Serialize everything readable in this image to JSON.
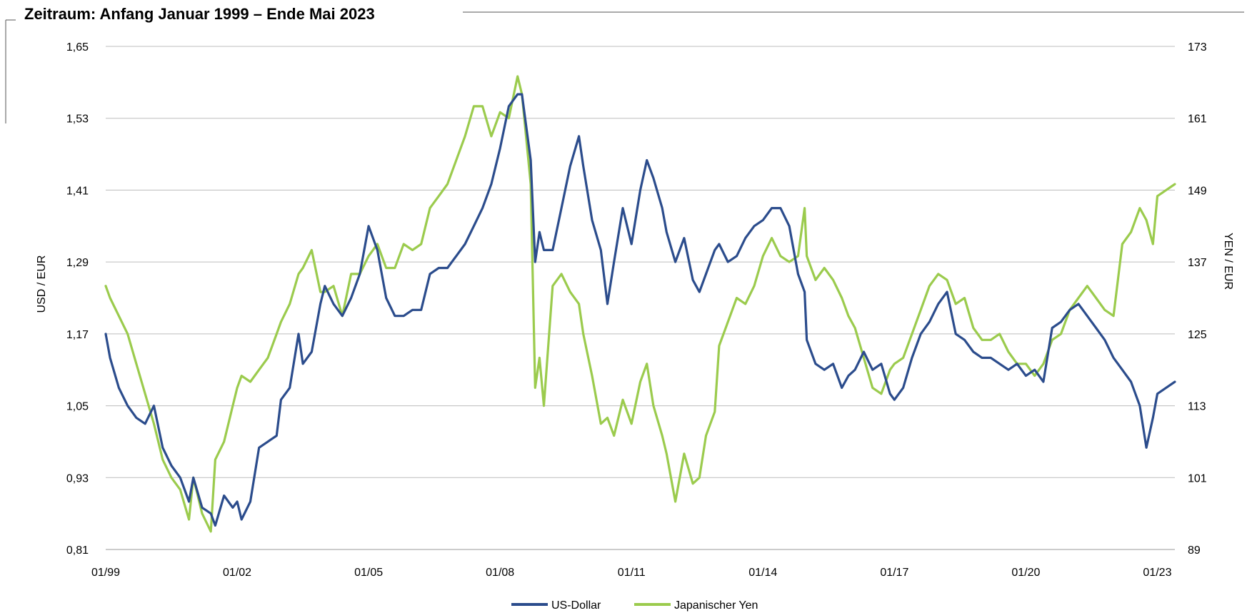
{
  "title": "Zeitraum: Anfang Januar 1999 – Ende Mai 2023",
  "chart_data": {
    "type": "line",
    "x_ticks": [
      "01/99",
      "01/02",
      "01/05",
      "01/08",
      "01/11",
      "01/14",
      "01/17",
      "01/20",
      "01/23"
    ],
    "x_tick_years": [
      1999,
      2002,
      2005,
      2008,
      2011,
      2014,
      2017,
      2020,
      2023
    ],
    "xlim": [
      1999.0,
      2023.4
    ],
    "left_axis": {
      "label": "USD / EUR",
      "ticks": [
        "1,65",
        "1,53",
        "1,41",
        "1,29",
        "1,17",
        "1,05",
        "0,93",
        "0,81"
      ],
      "ylim": [
        0.81,
        1.65
      ]
    },
    "right_axis": {
      "label": "YEN / EUR",
      "ticks": [
        "173",
        "161",
        "149",
        "137",
        "125",
        "113",
        "101",
        "89"
      ],
      "ylim": [
        89,
        173
      ]
    },
    "gridlines": true,
    "legend_position": "bottom-center",
    "series": [
      {
        "name": "US-Dollar",
        "axis": "left",
        "color": "#2B4C8C",
        "x": [
          1999.0,
          1999.1,
          1999.3,
          1999.5,
          1999.7,
          1999.9,
          2000.1,
          2000.3,
          2000.5,
          2000.7,
          2000.9,
          2001.0,
          2001.2,
          2001.4,
          2001.5,
          2001.7,
          2001.9,
          2002.0,
          2002.1,
          2002.3,
          2002.5,
          2002.7,
          2002.9,
          2003.0,
          2003.2,
          2003.4,
          2003.5,
          2003.7,
          2003.9,
          2004.0,
          2004.2,
          2004.4,
          2004.6,
          2004.8,
          2005.0,
          2005.2,
          2005.4,
          2005.6,
          2005.8,
          2006.0,
          2006.2,
          2006.4,
          2006.6,
          2006.8,
          2007.0,
          2007.2,
          2007.4,
          2007.6,
          2007.8,
          2008.0,
          2008.2,
          2008.4,
          2008.5,
          2008.7,
          2008.8,
          2008.9,
          2009.0,
          2009.2,
          2009.4,
          2009.6,
          2009.8,
          2009.9,
          2010.1,
          2010.3,
          2010.45,
          2010.6,
          2010.8,
          2011.0,
          2011.2,
          2011.35,
          2011.5,
          2011.7,
          2011.8,
          2012.0,
          2012.2,
          2012.4,
          2012.55,
          2012.7,
          2012.9,
          2013.0,
          2013.2,
          2013.4,
          2013.6,
          2013.8,
          2014.0,
          2014.2,
          2014.4,
          2014.6,
          2014.8,
          2014.95,
          2015.0,
          2015.2,
          2015.4,
          2015.6,
          2015.8,
          2015.95,
          2016.1,
          2016.3,
          2016.5,
          2016.7,
          2016.9,
          2017.0,
          2017.2,
          2017.4,
          2017.6,
          2017.8,
          2018.0,
          2018.2,
          2018.4,
          2018.6,
          2018.8,
          2019.0,
          2019.2,
          2019.4,
          2019.6,
          2019.8,
          2020.0,
          2020.2,
          2020.4,
          2020.6,
          2020.8,
          2021.0,
          2021.2,
          2021.4,
          2021.6,
          2021.8,
          2022.0,
          2022.2,
          2022.4,
          2022.6,
          2022.75,
          2022.9,
          2023.0,
          2023.2,
          2023.4
        ],
        "values": [
          1.17,
          1.13,
          1.08,
          1.05,
          1.03,
          1.02,
          1.05,
          0.98,
          0.95,
          0.93,
          0.89,
          0.93,
          0.88,
          0.87,
          0.85,
          0.9,
          0.88,
          0.89,
          0.86,
          0.89,
          0.98,
          0.99,
          1.0,
          1.06,
          1.08,
          1.17,
          1.12,
          1.14,
          1.22,
          1.25,
          1.22,
          1.2,
          1.23,
          1.27,
          1.35,
          1.31,
          1.23,
          1.2,
          1.2,
          1.21,
          1.21,
          1.27,
          1.28,
          1.28,
          1.3,
          1.32,
          1.35,
          1.38,
          1.42,
          1.48,
          1.55,
          1.57,
          1.57,
          1.46,
          1.29,
          1.34,
          1.31,
          1.31,
          1.38,
          1.45,
          1.5,
          1.45,
          1.36,
          1.31,
          1.22,
          1.29,
          1.38,
          1.32,
          1.41,
          1.46,
          1.43,
          1.38,
          1.34,
          1.29,
          1.33,
          1.26,
          1.24,
          1.27,
          1.31,
          1.32,
          1.29,
          1.3,
          1.33,
          1.35,
          1.36,
          1.38,
          1.38,
          1.35,
          1.27,
          1.24,
          1.16,
          1.12,
          1.11,
          1.12,
          1.08,
          1.1,
          1.11,
          1.14,
          1.11,
          1.12,
          1.07,
          1.06,
          1.08,
          1.13,
          1.17,
          1.19,
          1.22,
          1.24,
          1.17,
          1.16,
          1.14,
          1.13,
          1.13,
          1.12,
          1.11,
          1.12,
          1.1,
          1.11,
          1.09,
          1.18,
          1.19,
          1.21,
          1.22,
          1.2,
          1.18,
          1.16,
          1.13,
          1.11,
          1.09,
          1.05,
          0.98,
          1.03,
          1.07,
          1.08,
          1.09
        ]
      },
      {
        "name": "Japanischer Yen",
        "axis": "right",
        "color": "#9BCB4D",
        "x": [
          1999.0,
          1999.1,
          1999.3,
          1999.5,
          1999.7,
          1999.9,
          2000.1,
          2000.3,
          2000.5,
          2000.7,
          2000.9,
          2001.0,
          2001.2,
          2001.4,
          2001.5,
          2001.7,
          2001.9,
          2002.0,
          2002.1,
          2002.3,
          2002.5,
          2002.7,
          2002.9,
          2003.0,
          2003.2,
          2003.4,
          2003.5,
          2003.7,
          2003.9,
          2004.0,
          2004.2,
          2004.4,
          2004.6,
          2004.8,
          2005.0,
          2005.2,
          2005.4,
          2005.6,
          2005.8,
          2006.0,
          2006.2,
          2006.4,
          2006.6,
          2006.8,
          2007.0,
          2007.2,
          2007.4,
          2007.6,
          2007.8,
          2008.0,
          2008.2,
          2008.4,
          2008.5,
          2008.7,
          2008.8,
          2008.9,
          2009.0,
          2009.2,
          2009.4,
          2009.6,
          2009.8,
          2009.9,
          2010.1,
          2010.3,
          2010.45,
          2010.6,
          2010.8,
          2011.0,
          2011.2,
          2011.35,
          2011.5,
          2011.7,
          2011.8,
          2012.0,
          2012.2,
          2012.4,
          2012.55,
          2012.7,
          2012.9,
          2013.0,
          2013.2,
          2013.4,
          2013.6,
          2013.8,
          2014.0,
          2014.2,
          2014.4,
          2014.6,
          2014.8,
          2014.95,
          2015.0,
          2015.2,
          2015.4,
          2015.6,
          2015.8,
          2015.95,
          2016.1,
          2016.3,
          2016.5,
          2016.7,
          2016.9,
          2017.0,
          2017.2,
          2017.4,
          2017.6,
          2017.8,
          2018.0,
          2018.2,
          2018.4,
          2018.6,
          2018.8,
          2019.0,
          2019.2,
          2019.4,
          2019.6,
          2019.8,
          2020.0,
          2020.2,
          2020.4,
          2020.6,
          2020.8,
          2021.0,
          2021.2,
          2021.4,
          2021.6,
          2021.8,
          2022.0,
          2022.2,
          2022.4,
          2022.6,
          2022.75,
          2022.9,
          2023.0,
          2023.2,
          2023.4
        ],
        "values": [
          133,
          131,
          128,
          125,
          120,
          115,
          110,
          104,
          101,
          99,
          94,
          101,
          95,
          92,
          104,
          107,
          113,
          116,
          118,
          117,
          119,
          121,
          125,
          127,
          130,
          135,
          136,
          139,
          132,
          132,
          133,
          128,
          135,
          135,
          138,
          140,
          136,
          136,
          140,
          139,
          140,
          146,
          148,
          150,
          154,
          158,
          163,
          163,
          158,
          162,
          161,
          168,
          165,
          150,
          116,
          121,
          113,
          133,
          135,
          132,
          130,
          125,
          118,
          110,
          111,
          108,
          114,
          110,
          117,
          120,
          113,
          108,
          105,
          97,
          105,
          100,
          101,
          108,
          112,
          123,
          127,
          131,
          130,
          133,
          138,
          141,
          138,
          137,
          138,
          146,
          138,
          134,
          136,
          134,
          131,
          128,
          126,
          121,
          116,
          115,
          119,
          120,
          121,
          125,
          129,
          133,
          135,
          134,
          130,
          131,
          126,
          124,
          124,
          125,
          122,
          120,
          120,
          118,
          120,
          124,
          125,
          129,
          131,
          133,
          131,
          129,
          128,
          140,
          142,
          146,
          144,
          140,
          148,
          149,
          150
        ]
      }
    ]
  },
  "legend": [
    {
      "name": "US-Dollar",
      "color": "#2B4C8C"
    },
    {
      "name": "Japanischer Yen",
      "color": "#9BCB4D"
    }
  ]
}
